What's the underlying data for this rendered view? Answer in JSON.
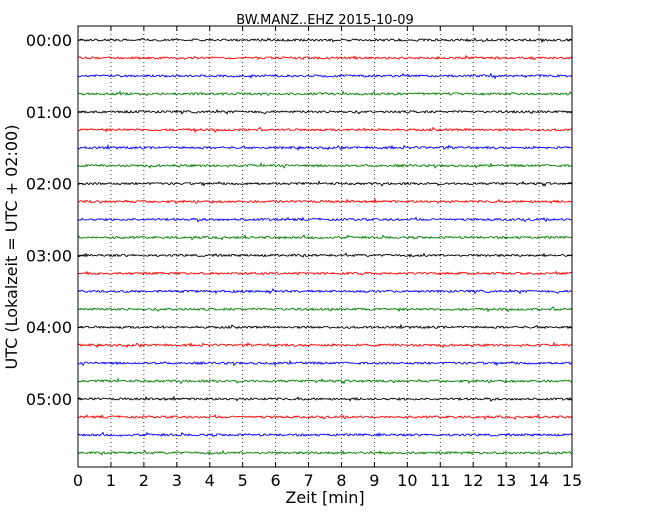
{
  "chart_data": {
    "type": "line",
    "title": "BW.MANZ..EHZ 2015-10-09",
    "xlabel": "Zeit  [min]",
    "ylabel": "UTC (Lokalzeit = UTC + 02:00)",
    "xlim": [
      0,
      15
    ],
    "x_ticks": [
      "0",
      "1",
      "2",
      "3",
      "4",
      "5",
      "6",
      "7",
      "8",
      "9",
      "10",
      "11",
      "12",
      "13",
      "14",
      "15"
    ],
    "y_tick_labels": [
      "00:00",
      "01:00",
      "02:00",
      "03:00",
      "04:00",
      "05:00"
    ],
    "row_count": 24,
    "row_interval_min": 15,
    "grid": "vertical dotted",
    "colors": [
      "#000000",
      "#ff0000",
      "#0000ff",
      "#008000"
    ]
  }
}
